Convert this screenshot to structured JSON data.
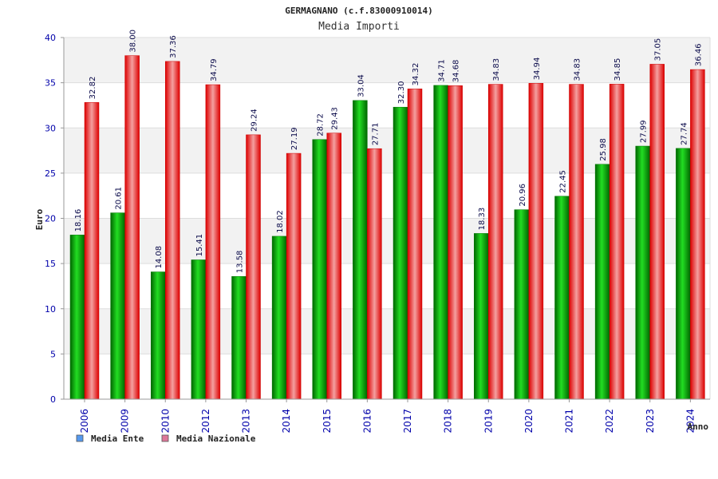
{
  "chart_data": {
    "type": "bar",
    "title": "GERMAGNANO (c.f.83000910014)",
    "subtitle": "Media Importi",
    "ylabel": "Euro",
    "xlabel": "Anno",
    "ylim": [
      0,
      40
    ],
    "yticks": [
      0,
      5,
      10,
      15,
      20,
      25,
      30,
      35,
      40
    ],
    "grid": true,
    "legend_position": "bottom-left",
    "categories": [
      "2006",
      "2009",
      "2010",
      "2012",
      "2013",
      "2014",
      "2015",
      "2016",
      "2017",
      "2018",
      "2019",
      "2020",
      "2021",
      "2022",
      "2023",
      "2024"
    ],
    "series": [
      {
        "name": "Media Ente",
        "color": "#00aa00",
        "legend_color": "#5599ee",
        "values": [
          18.16,
          20.61,
          14.08,
          15.41,
          13.58,
          18.02,
          28.72,
          33.04,
          32.3,
          34.71,
          18.33,
          20.96,
          22.45,
          25.98,
          27.99,
          27.74
        ],
        "labels": [
          "18.16",
          "20.61",
          "14.08",
          "15.41",
          "13.58",
          "18.02",
          "28.72",
          "33.04",
          "32.30",
          "34.71",
          "18.33",
          "20.96",
          "22.45",
          "25.98",
          "27.99",
          "27.74"
        ]
      },
      {
        "name": "Media Nazionale",
        "color": "#ee1111",
        "legend_color": "#dd7799",
        "values": [
          32.82,
          38.0,
          37.36,
          34.79,
          29.24,
          27.19,
          29.43,
          27.71,
          34.32,
          34.68,
          34.83,
          34.94,
          34.83,
          34.85,
          37.05,
          36.46
        ],
        "labels": [
          "32.82",
          "38.00",
          "37.36",
          "34.79",
          "29.24",
          "27.19",
          "29.43",
          "27.71",
          "34.32",
          "34.68",
          "34.83",
          "34.94",
          "34.83",
          "34.85",
          "37.05",
          "36.46"
        ]
      }
    ]
  }
}
